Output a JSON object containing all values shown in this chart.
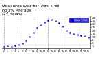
{
  "title": "Milwaukee Weather Wind Chill\nHourly Average\n(24 Hours)",
  "hours": [
    0,
    1,
    2,
    3,
    4,
    5,
    6,
    7,
    8,
    9,
    10,
    11,
    12,
    13,
    14,
    15,
    16,
    17,
    18,
    19,
    20,
    21,
    22,
    23
  ],
  "wind_chill": [
    -5,
    -4,
    -6,
    -3,
    -2,
    0,
    4,
    10,
    17,
    24,
    29,
    33,
    36,
    37,
    35,
    32,
    26,
    20,
    17,
    15,
    14,
    13,
    11,
    9
  ],
  "line_color": "#0000cc",
  "bg_color": "#ffffff",
  "plot_bg": "#ffffff",
  "grid_color": "#888888",
  "ylim": [
    -8,
    42
  ],
  "xlim": [
    -0.5,
    23.5
  ],
  "yticks": [
    -5,
    0,
    5,
    10,
    15,
    20,
    25,
    30,
    35,
    40
  ],
  "ytick_labels": [
    "-5",
    "0",
    "5",
    "10",
    "15",
    "20",
    "25",
    "30",
    "35",
    "40"
  ],
  "xtick_positions": [
    0,
    1,
    2,
    3,
    4,
    5,
    6,
    7,
    8,
    9,
    10,
    11,
    12,
    13,
    14,
    15,
    16,
    17,
    18,
    19,
    20,
    21,
    22,
    23
  ],
  "xtick_labels": [
    "0",
    "1",
    "2",
    "3",
    "4",
    "5",
    "6",
    "7",
    "8",
    "9",
    "10",
    "11",
    "12",
    "13",
    "14",
    "15",
    "16",
    "17",
    "18",
    "19",
    "20",
    "21",
    "22",
    "23"
  ],
  "legend_label": "Wind Chill",
  "title_fontsize": 4.0,
  "tick_fontsize": 3.0,
  "marker_size": 1.8,
  "vgrid_every": [
    0,
    4,
    8,
    12,
    16,
    20
  ],
  "legend_facecolor": "#0000cc",
  "legend_textcolor": "#ffffff"
}
